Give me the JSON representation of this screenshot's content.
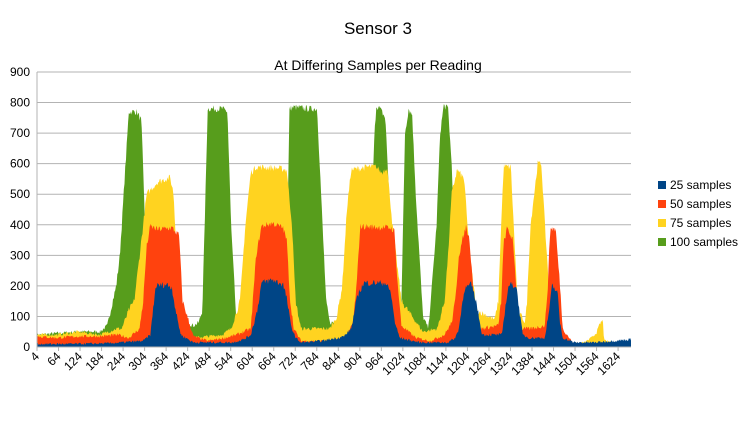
{
  "chart_data": {
    "type": "area",
    "title": "Sensor 3",
    "subtitle": "At Differing Samples per Reading",
    "xlabel": "",
    "ylabel": "",
    "ylim": [
      0,
      900
    ],
    "yticks": [
      0,
      100,
      200,
      300,
      400,
      500,
      600,
      700,
      800,
      900
    ],
    "xlim": [
      4,
      1660
    ],
    "xticks": [
      4,
      64,
      124,
      184,
      244,
      304,
      364,
      424,
      484,
      544,
      604,
      664,
      724,
      784,
      844,
      904,
      964,
      1024,
      1084,
      1144,
      1204,
      1264,
      1324,
      1384,
      1444,
      1504,
      1564,
      1624
    ],
    "grid": true,
    "legend_position": "right",
    "colors": {
      "25 samples": "#004586",
      "50 samples": "#ff420e",
      "75 samples": "#ffd320",
      "100 samples": "#579d1c",
      "grid": "#b3b3b3",
      "axis": "#b3b3b3"
    },
    "draw_order": [
      "100 samples",
      "75 samples",
      "50 samples",
      "25 samples"
    ],
    "series": [
      {
        "name": "25 samples",
        "x": [
          4,
          100,
          200,
          240,
          300,
          320,
          335,
          365,
          380,
          392,
          405,
          440,
          550,
          580,
          600,
          618,
          630,
          660,
          690,
          700,
          712,
          725,
          740,
          800,
          860,
          880,
          898,
          915,
          975,
          990,
          1002,
          1015,
          1070,
          1150,
          1170,
          1180,
          1195,
          1215,
          1228,
          1245,
          1300,
          1313,
          1320,
          1340,
          1350,
          1358,
          1375,
          1420,
          1433,
          1440,
          1455,
          1462,
          1470,
          1500,
          1560,
          1660
        ],
        "y": [
          10,
          10,
          12,
          15,
          20,
          40,
          200,
          205,
          195,
          110,
          40,
          15,
          15,
          25,
          40,
          120,
          210,
          220,
          205,
          160,
          70,
          30,
          15,
          20,
          35,
          60,
          170,
          210,
          210,
          180,
          80,
          30,
          15,
          15,
          30,
          60,
          190,
          205,
          150,
          40,
          40,
          160,
          205,
          200,
          110,
          40,
          30,
          30,
          130,
          200,
          180,
          80,
          30,
          15,
          15,
          25
        ]
      },
      {
        "name": "50 samples",
        "x": [
          4,
          60,
          120,
          180,
          230,
          260,
          290,
          300,
          310,
          320,
          340,
          380,
          400,
          410,
          440,
          480,
          530,
          560,
          600,
          615,
          630,
          660,
          690,
          700,
          710,
          720,
          740,
          840,
          870,
          885,
          895,
          905,
          990,
          1000,
          1010,
          1020,
          1060,
          1100,
          1140,
          1160,
          1170,
          1180,
          1200,
          1210,
          1225,
          1240,
          1290,
          1298,
          1305,
          1315,
          1330,
          1345,
          1352,
          1360,
          1380,
          1420,
          1428,
          1435,
          1450,
          1462,
          1470,
          1500,
          1660
        ],
        "y": [
          35,
          30,
          35,
          35,
          40,
          30,
          60,
          150,
          330,
          395,
          385,
          390,
          365,
          150,
          35,
          20,
          30,
          40,
          60,
          300,
          395,
          405,
          390,
          350,
          150,
          60,
          20,
          20,
          40,
          80,
          200,
          395,
          390,
          380,
          200,
          70,
          30,
          20,
          40,
          80,
          150,
          300,
          395,
          350,
          120,
          60,
          70,
          150,
          340,
          390,
          350,
          130,
          60,
          60,
          60,
          70,
          200,
          390,
          385,
          200,
          60,
          10,
          10
        ]
      },
      {
        "name": "75 samples",
        "x": [
          4,
          60,
          120,
          180,
          225,
          240,
          260,
          275,
          290,
          310,
          340,
          375,
          385,
          395,
          410,
          440,
          520,
          545,
          570,
          585,
          600,
          615,
          680,
          700,
          715,
          725,
          740,
          820,
          840,
          855,
          868,
          880,
          930,
          950,
          965,
          980,
          995,
          1020,
          1080,
          1120,
          1140,
          1150,
          1160,
          1175,
          1195,
          1210,
          1230,
          1280,
          1290,
          1298,
          1305,
          1325,
          1335,
          1345,
          1365,
          1370,
          1380,
          1400,
          1410,
          1420,
          1435,
          1450,
          1500,
          1530,
          1550,
          1565,
          1575,
          1582,
          1585,
          1660
        ],
        "y": [
          40,
          40,
          50,
          40,
          60,
          60,
          120,
          150,
          300,
          500,
          540,
          555,
          500,
          250,
          70,
          30,
          40,
          60,
          150,
          400,
          570,
          590,
          585,
          580,
          400,
          150,
          60,
          60,
          100,
          200,
          450,
          580,
          590,
          590,
          570,
          590,
          400,
          150,
          50,
          60,
          150,
          300,
          500,
          580,
          550,
          300,
          120,
          90,
          150,
          400,
          590,
          590,
          350,
          120,
          80,
          150,
          400,
          600,
          600,
          400,
          130,
          40,
          10,
          15,
          30,
          50,
          80,
          85,
          20,
          10
        ]
      },
      {
        "name": "100 samples",
        "x": [
          4,
          60,
          120,
          180,
          200,
          215,
          225,
          235,
          260,
          270,
          282,
          295,
          310,
          330,
          380,
          400,
          440,
          455,
          465,
          480,
          520,
          535,
          545,
          560,
          580,
          600,
          660,
          690,
          700,
          708,
          720,
          760,
          785,
          800,
          810,
          820,
          840,
          860,
          900,
          915,
          925,
          935,
          945,
          950,
          960,
          975,
          990,
          1000,
          1010,
          1020,
          1030,
          1040,
          1050,
          1060,
          1080,
          1095,
          1105,
          1118,
          1128,
          1138,
          1150,
          1160,
          1170,
          1180,
          1200,
          1210,
          1220,
          1230,
          1660
        ],
        "y": [
          40,
          45,
          50,
          50,
          70,
          150,
          200,
          300,
          770,
          770,
          770,
          740,
          250,
          100,
          90,
          90,
          70,
          80,
          120,
          780,
          780,
          770,
          400,
          80,
          50,
          60,
          70,
          80,
          250,
          780,
          785,
          780,
          780,
          400,
          150,
          80,
          80,
          100,
          120,
          150,
          300,
          400,
          700,
          790,
          780,
          750,
          400,
          150,
          60,
          150,
          700,
          780,
          760,
          500,
          100,
          60,
          200,
          400,
          700,
          790,
          780,
          600,
          300,
          120,
          80,
          0,
          0,
          0,
          0
        ]
      }
    ],
    "legend_order": [
      "25 samples",
      "50 samples",
      "75 samples",
      "100 samples"
    ]
  }
}
